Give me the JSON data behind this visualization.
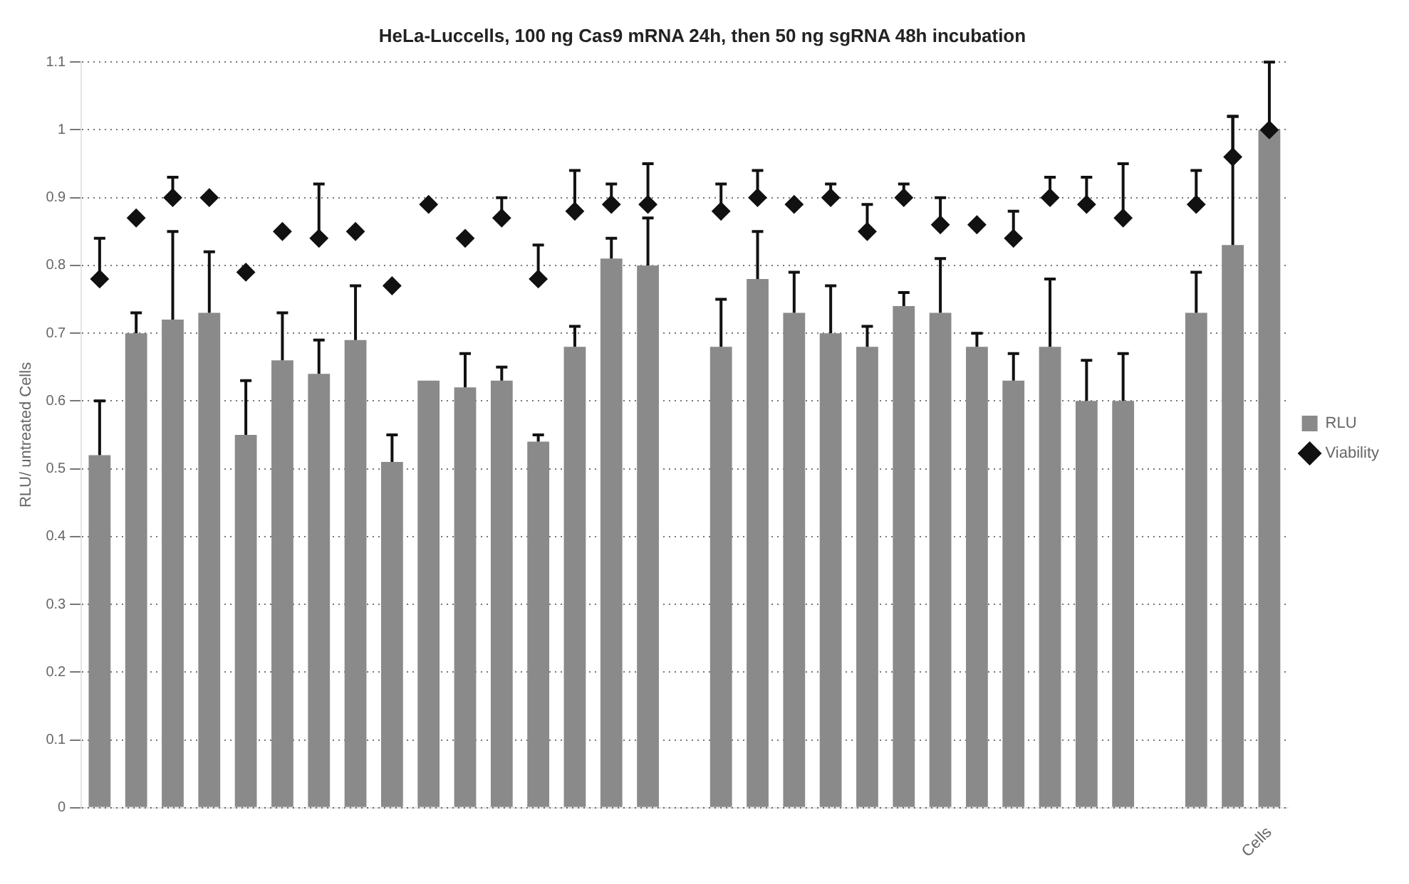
{
  "chart_data": {
    "type": "bar",
    "title": "HeLa-Luccells, 100 ng Cas9 mRNA 24h, then 50 ng sgRNA 48h incubation",
    "ylabel": "RLU/ untreated Cells",
    "categories": [
      null,
      null,
      null,
      null,
      null,
      null,
      null,
      null,
      null,
      null,
      null,
      null,
      null,
      null,
      null,
      null,
      null,
      null,
      null,
      null,
      null,
      null,
      null,
      null,
      null,
      null,
      null,
      null,
      null,
      null,
      null,
      null,
      "Cells"
    ],
    "series": [
      {
        "name": "RLU",
        "color": "#8a8a8a",
        "values": [
          0.52,
          0.7,
          0.72,
          0.73,
          0.55,
          0.66,
          0.64,
          0.69,
          0.51,
          0.63,
          0.62,
          0.63,
          0.54,
          0.68,
          0.81,
          0.8,
          null,
          0.68,
          0.78,
          0.73,
          0.7,
          0.68,
          0.74,
          0.73,
          0.68,
          0.63,
          0.68,
          0.6,
          0.6,
          null,
          0.73,
          0.83,
          1.0
        ],
        "errors": [
          [
            0.52,
            0.6
          ],
          [
            0.7,
            0.73
          ],
          [
            0.72,
            0.85
          ],
          [
            0.73,
            0.82
          ],
          [
            0.55,
            0.63
          ],
          [
            0.66,
            0.73
          ],
          [
            0.64,
            0.69
          ],
          [
            0.69,
            0.77
          ],
          [
            0.51,
            0.55
          ],
          null,
          [
            0.62,
            0.67
          ],
          [
            0.63,
            0.65
          ],
          [
            0.54,
            0.55
          ],
          [
            0.68,
            0.71
          ],
          [
            0.81,
            0.84
          ],
          [
            0.8,
            0.87
          ],
          null,
          [
            0.68,
            0.75
          ],
          [
            0.78,
            0.85
          ],
          [
            0.73,
            0.79
          ],
          [
            0.7,
            0.77
          ],
          [
            0.68,
            0.71
          ],
          [
            0.74,
            0.76
          ],
          [
            0.73,
            0.81
          ],
          [
            0.68,
            0.7
          ],
          [
            0.63,
            0.67
          ],
          [
            0.68,
            0.78
          ],
          [
            0.6,
            0.66
          ],
          [
            0.6,
            0.67
          ],
          null,
          [
            0.73,
            0.79
          ],
          [
            0.83,
            1.02
          ],
          [
            1.0,
            1.1
          ]
        ]
      },
      {
        "name": "Viability",
        "type": "scatter",
        "color": "#111111",
        "marker": "diamond",
        "values": [
          0.78,
          0.87,
          0.9,
          0.9,
          0.79,
          0.85,
          0.84,
          0.85,
          0.77,
          0.89,
          0.84,
          0.87,
          0.78,
          0.88,
          0.89,
          0.89,
          null,
          0.88,
          0.9,
          0.89,
          0.9,
          0.85,
          0.9,
          0.86,
          0.86,
          0.84,
          0.9,
          0.89,
          0.87,
          null,
          0.89,
          0.96,
          1.0
        ],
        "errors": [
          [
            0.78,
            0.84
          ],
          null,
          [
            0.9,
            0.93
          ],
          null,
          null,
          null,
          [
            0.84,
            0.92
          ],
          null,
          null,
          null,
          null,
          [
            0.87,
            0.9
          ],
          [
            0.78,
            0.83
          ],
          [
            0.88,
            0.94
          ],
          [
            0.89,
            0.92
          ],
          [
            0.89,
            0.95
          ],
          null,
          [
            0.88,
            0.92
          ],
          [
            0.9,
            0.94
          ],
          null,
          [
            0.9,
            0.92
          ],
          [
            0.85,
            0.89
          ],
          [
            0.9,
            0.92
          ],
          [
            0.86,
            0.9
          ],
          null,
          [
            0.84,
            0.88
          ],
          [
            0.9,
            0.93
          ],
          [
            0.89,
            0.93
          ],
          [
            0.87,
            0.95
          ],
          null,
          [
            0.89,
            0.94
          ],
          [
            0.96,
            1.02
          ],
          null
        ]
      }
    ],
    "ylim": [
      0,
      1.1
    ],
    "yticks": [
      0,
      0.1,
      0.2,
      0.3,
      0.4,
      0.5,
      0.6,
      0.7,
      0.8,
      0.9,
      1,
      1.1
    ],
    "grid": "y",
    "line_style": "dotted",
    "legend": "right"
  }
}
